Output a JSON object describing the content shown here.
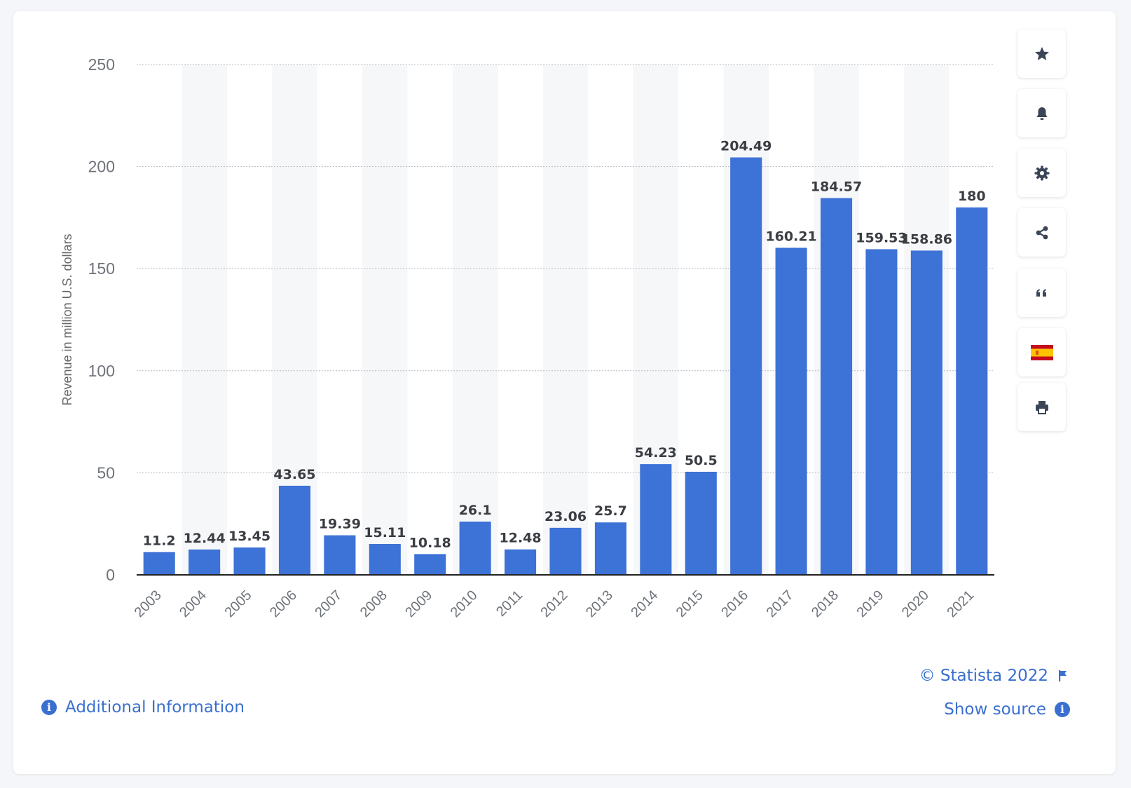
{
  "chart_data": {
    "type": "bar",
    "categories": [
      "2003",
      "2004",
      "2005",
      "2006",
      "2007",
      "2008",
      "2009",
      "2010",
      "2011",
      "2012",
      "2013",
      "2014",
      "2015",
      "2016",
      "2017",
      "2018",
      "2019",
      "2020",
      "2021"
    ],
    "values": [
      11.2,
      12.44,
      13.45,
      43.65,
      19.39,
      15.11,
      10.18,
      26.1,
      12.48,
      23.06,
      25.7,
      54.23,
      50.5,
      204.49,
      160.21,
      184.57,
      159.53,
      158.86,
      180
    ],
    "value_labels": [
      "11.2",
      "12.44",
      "13.45",
      "43.65",
      "19.39",
      "15.11",
      "10.18",
      "26.1",
      "12.48",
      "23.06",
      "25.7",
      "54.23",
      "50.5",
      "204.49",
      "160.21",
      "184.57",
      "159.53",
      "158.86",
      "180"
    ],
    "ylabel": "Revenue in million U.S. dollars",
    "xlabel": "",
    "ylim": [
      0,
      250
    ],
    "yticks": [
      0,
      50,
      100,
      150,
      200,
      250
    ],
    "grid": true,
    "bar_color": "#3d72d6",
    "alt_band_color": "#f6f7f9"
  },
  "toolbar": {
    "buttons": [
      {
        "name": "favorite-button",
        "icon": "star-icon"
      },
      {
        "name": "notification-button",
        "icon": "bell-icon"
      },
      {
        "name": "settings-button",
        "icon": "gear-icon"
      },
      {
        "name": "share-button",
        "icon": "share-icon"
      },
      {
        "name": "cite-button",
        "icon": "quote-icon"
      },
      {
        "name": "language-button",
        "icon": "spain-flag-icon"
      },
      {
        "name": "print-button",
        "icon": "printer-icon"
      }
    ]
  },
  "footer": {
    "copyright": "© Statista 2022",
    "show_source": "Show source",
    "additional_info": "Additional Information",
    "link_color": "#3a6fcf"
  }
}
